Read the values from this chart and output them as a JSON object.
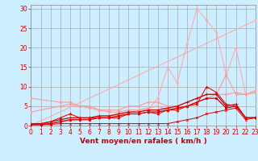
{
  "background_color": "#cceeff",
  "grid_color": "#aaaaaa",
  "xlabel": "Vent moyen/en rafales ( km/h )",
  "xlabel_color": "#cc0000",
  "xlabel_fontsize": 6.5,
  "tick_color": "#cc0000",
  "tick_fontsize": 5.5,
  "ylim": [
    0,
    31
  ],
  "xlim": [
    0,
    23
  ],
  "yticks": [
    0,
    5,
    10,
    15,
    20,
    25,
    30
  ],
  "xticks": [
    0,
    1,
    2,
    3,
    4,
    5,
    6,
    7,
    8,
    9,
    10,
    11,
    12,
    13,
    14,
    15,
    16,
    17,
    18,
    19,
    20,
    21,
    22,
    23
  ],
  "series": [
    {
      "x": [
        0,
        23
      ],
      "y": [
        0,
        27
      ],
      "color": "#ffaaaa",
      "lw": 0.8,
      "marker": "D",
      "markersize": 1.5
    },
    {
      "x": [
        0,
        10,
        11,
        12,
        13,
        14,
        15,
        16,
        17,
        18,
        19,
        20,
        21,
        22,
        23
      ],
      "y": [
        0,
        3,
        4,
        4,
        7,
        15,
        11,
        21,
        30,
        27,
        24,
        13,
        20,
        8,
        8.5
      ],
      "color": "#ffaaaa",
      "lw": 0.8,
      "marker": "D",
      "markersize": 1.5
    },
    {
      "x": [
        0,
        3,
        4,
        5,
        6,
        7,
        8,
        9,
        10,
        11,
        12,
        13,
        14,
        15,
        16,
        17,
        18,
        19,
        20,
        21,
        22,
        23
      ],
      "y": [
        7,
        6,
        6,
        5,
        5,
        4,
        4,
        4,
        5,
        5,
        6,
        6,
        5,
        5,
        6,
        7,
        8,
        8,
        13,
        8,
        8,
        9
      ],
      "color": "#ff9999",
      "lw": 0.8,
      "marker": "D",
      "markersize": 1.5
    },
    {
      "x": [
        0,
        3,
        4,
        5,
        6,
        7,
        8,
        9,
        10,
        11,
        12,
        13,
        14,
        15,
        16,
        17,
        18,
        19,
        20,
        21,
        22,
        23
      ],
      "y": [
        3.5,
        5,
        5.5,
        5,
        4.5,
        4,
        3.5,
        3.5,
        4,
        4,
        4.5,
        5,
        4,
        4,
        5,
        6,
        7,
        8,
        8,
        8.5,
        8,
        8.5
      ],
      "color": "#ff9999",
      "lw": 0.8,
      "marker": "D",
      "markersize": 1.5
    },
    {
      "x": [
        0,
        1,
        2,
        3,
        4,
        5,
        6,
        7,
        8,
        9,
        10,
        11,
        12,
        13,
        14,
        15,
        16,
        17,
        18,
        19,
        20,
        21,
        22,
        23
      ],
      "y": [
        0.3,
        0.3,
        0.5,
        1,
        1.5,
        1.5,
        1.5,
        2,
        2,
        2.5,
        3,
        3,
        3.5,
        3.5,
        4,
        4.5,
        5,
        6,
        7,
        7,
        4.5,
        5,
        2,
        2
      ],
      "color": "#cc0000",
      "lw": 0.9,
      "marker": "s",
      "markersize": 1.5
    },
    {
      "x": [
        0,
        1,
        2,
        3,
        4,
        5,
        6,
        7,
        8,
        9,
        10,
        11,
        12,
        13,
        14,
        15,
        16,
        17,
        18,
        19,
        20,
        21,
        22,
        23
      ],
      "y": [
        0.5,
        0.5,
        1,
        1.5,
        2,
        2,
        2,
        2.5,
        2.5,
        3,
        3.5,
        3.5,
        4,
        4,
        4.5,
        5,
        6,
        7,
        8,
        8,
        5,
        5.5,
        2,
        2
      ],
      "color": "#cc0000",
      "lw": 0.9,
      "marker": "+",
      "markersize": 2.5
    },
    {
      "x": [
        0,
        1,
        2,
        3,
        4,
        5,
        6,
        7,
        8,
        9,
        10,
        11,
        12,
        13,
        14,
        15,
        16,
        17,
        18,
        19,
        20,
        21,
        22,
        23
      ],
      "y": [
        0.5,
        0.3,
        1,
        2,
        3,
        2,
        2,
        2,
        2,
        2,
        3,
        3,
        3.5,
        3,
        4,
        4,
        5,
        5.5,
        10,
        8.5,
        5.5,
        5,
        2,
        2
      ],
      "color": "#dd1111",
      "lw": 0.8,
      "marker": "^",
      "markersize": 2
    },
    {
      "x": [
        0,
        1,
        2,
        3,
        4,
        5,
        6,
        7,
        8,
        9,
        10,
        11,
        12,
        13,
        14,
        15,
        16,
        17,
        18,
        19,
        20,
        21,
        22,
        23
      ],
      "y": [
        0.2,
        0.2,
        0.3,
        0.5,
        0.5,
        0.5,
        0.5,
        0.5,
        0.5,
        0.5,
        0.5,
        0.5,
        0.5,
        0.5,
        0.5,
        1,
        1.5,
        2,
        3,
        3.5,
        4,
        4.5,
        1.5,
        2
      ],
      "color": "#cc0000",
      "lw": 0.7,
      "marker": "x",
      "markersize": 2
    }
  ]
}
